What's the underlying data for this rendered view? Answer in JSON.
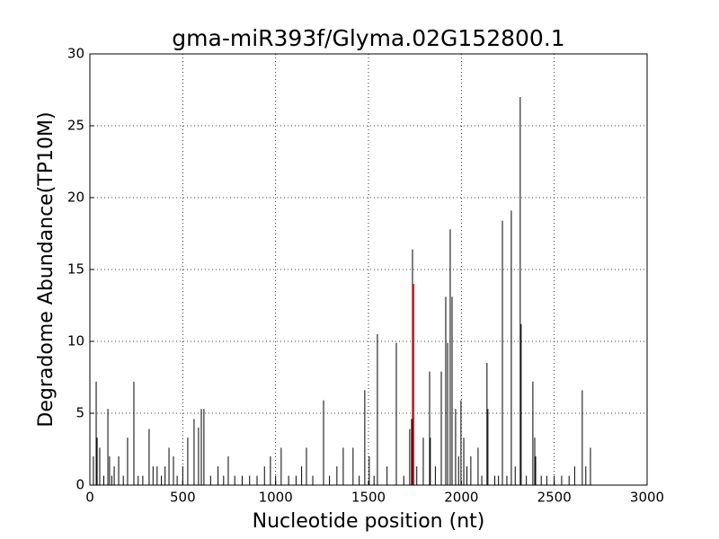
{
  "chart_data": {
    "type": "spike",
    "title": "gma-miR393f/Glyma.02G152800.1",
    "xlabel": "Nucleotide position (nt)",
    "ylabel": "Degradome Abundance(TP10M)",
    "xlim": [
      0,
      3000
    ],
    "xticks": [
      0,
      500,
      1000,
      1500,
      2000,
      2500,
      3000
    ],
    "ylim": [
      0,
      30
    ],
    "yticks": [
      0,
      5,
      10,
      15,
      20,
      25,
      30
    ],
    "grid": true,
    "color": "#000000",
    "x": [
      19,
      34,
      39,
      53,
      75,
      97,
      106,
      118,
      131,
      155,
      180,
      203,
      237,
      260,
      285,
      319,
      340,
      362,
      385,
      405,
      426,
      450,
      470,
      500,
      527,
      561,
      585,
      600,
      614,
      650,
      690,
      720,
      745,
      780,
      820,
      860,
      900,
      940,
      972,
      1000,
      1030,
      1070,
      1110,
      1140,
      1166,
      1200,
      1258,
      1290,
      1330,
      1364,
      1417,
      1450,
      1480,
      1504,
      1530,
      1548,
      1600,
      1650,
      1690,
      1722,
      1732,
      1737,
      1760,
      1795,
      1829,
      1833,
      1860,
      1892,
      1916,
      1926,
      1940,
      1950,
      1969,
      1985,
      1998,
      2013,
      2030,
      2051,
      2090,
      2110,
      2138,
      2143,
      2180,
      2200,
      2221,
      2245,
      2269,
      2290,
      2317,
      2322,
      2350,
      2385,
      2395,
      2400,
      2430,
      2460,
      2500,
      2540,
      2580,
      2610,
      2651,
      2670,
      2695
    ],
    "values": [
      2,
      7.2,
      3.3,
      2.6,
      0.65,
      5.3,
      2,
      0.65,
      1.3,
      2,
      0.65,
      3.3,
      7.2,
      0.65,
      0.65,
      3.9,
      1.3,
      1.3,
      0.65,
      1.3,
      2.6,
      2,
      0.65,
      1.3,
      3.3,
      4.6,
      4,
      5.3,
      5.3,
      0.65,
      1.3,
      0.65,
      2,
      0.65,
      0.65,
      0.65,
      0.65,
      1.3,
      2,
      0.65,
      2.6,
      0.65,
      0.65,
      1.3,
      2.6,
      0.65,
      5.9,
      0.65,
      1.3,
      2.6,
      2.6,
      0.65,
      6.6,
      2,
      0.65,
      10.5,
      1.3,
      9.9,
      0.65,
      3.9,
      4.6,
      16.4,
      1.3,
      3.3,
      7.9,
      3.3,
      1.3,
      7.9,
      13.1,
      9.9,
      17.8,
      13.1,
      5.3,
      2,
      5.9,
      3.3,
      1.3,
      2,
      2.6,
      0.65,
      8.5,
      5.3,
      0.65,
      0.65,
      18.4,
      0.65,
      19.1,
      1.3,
      27,
      11.2,
      0.65,
      7.2,
      3.3,
      2,
      0.65,
      0.65,
      0.65,
      0.65,
      0.65,
      1.3,
      6.6,
      1.3,
      2.6
    ],
    "highlight": {
      "x": 1742,
      "value": 14,
      "color": "#ff0000"
    }
  }
}
